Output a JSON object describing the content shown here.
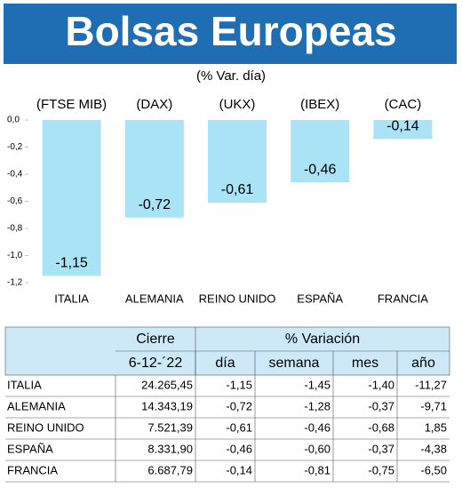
{
  "chart_data": {
    "type": "bar",
    "title": "Bolsas Europeas",
    "subtitle": "(% Var. día)",
    "categories": [
      "ITALIA",
      "ALEMANIA",
      "REINO UNIDO",
      "ESPAÑA",
      "FRANCIA"
    ],
    "annotations": [
      "(FTSE MIB)",
      "(DAX)",
      "(UKX)",
      "(IBEX)",
      "(CAC)"
    ],
    "values": [
      -1.15,
      -0.72,
      -0.61,
      -0.46,
      -0.14
    ],
    "value_labels": [
      "-1,15",
      "-0,72",
      "-0,61",
      "-0,46",
      "-0,14"
    ],
    "color": "#a9e3f5",
    "ylim": [
      -1.2,
      0
    ],
    "yticks": [
      {
        "value": 0,
        "label": "0,0"
      },
      {
        "value": -0.2,
        "label": "-0,2"
      },
      {
        "value": -0.4,
        "label": "-0,4"
      },
      {
        "value": -0.6,
        "label": "-0,6"
      },
      {
        "value": -0.8,
        "label": "-0,8"
      },
      {
        "value": -1,
        "label": "-1,0"
      },
      {
        "value": -1.2,
        "label": "-1,2"
      }
    ]
  },
  "table": {
    "header": [
      "Cierre",
      "% Variación"
    ],
    "subheader": [
      "6-12-´22",
      "día",
      "semana",
      "mes",
      "año"
    ],
    "rows": [
      [
        "ITALIA",
        "24.265,45",
        "-1,15",
        "-1,45",
        "-1,40",
        "-11,27"
      ],
      [
        "ALEMANIA",
        "14.343,19",
        "-0,72",
        "-1,28",
        "-0,37",
        "-9,71"
      ],
      [
        "REINO UNIDO",
        "7.521,39",
        "-0,61",
        "-0,46",
        "-0,68",
        "1,85"
      ],
      [
        "ESPAÑA",
        "8.331,90",
        "-0,46",
        "-0,60",
        "-0,37",
        "-4,38"
      ],
      [
        "FRANCIA",
        "6.687,79",
        "-0,14",
        "-0,81",
        "-0,75",
        "-6,50"
      ]
    ]
  }
}
